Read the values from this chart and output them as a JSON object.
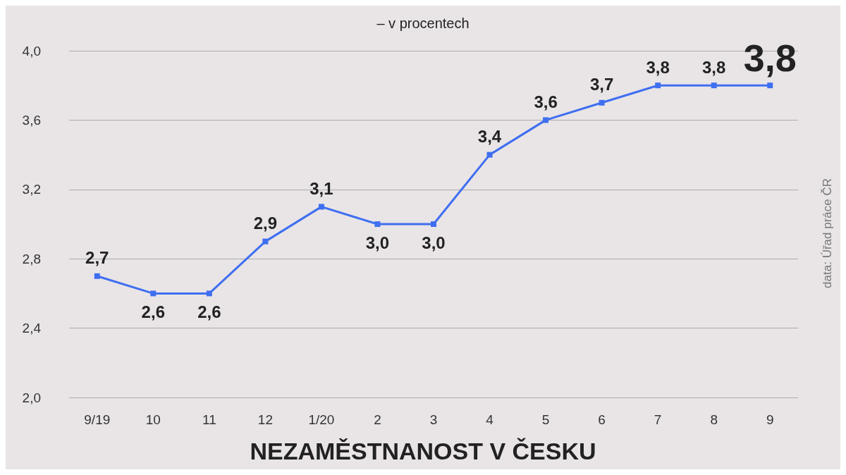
{
  "chart_data": {
    "type": "line",
    "title": "NEZAMĚSTNANOST V ČESKU",
    "subtitle": "– v procentech",
    "annotations": [
      "data: Úřad práce ČR"
    ],
    "categories": [
      "9/19",
      "10",
      "11",
      "12",
      "1/20",
      "2",
      "3",
      "4",
      "5",
      "6",
      "7",
      "8",
      "9"
    ],
    "series": [
      {
        "color": "#3f6ff0",
        "values": [
          2.7,
          2.6,
          2.6,
          2.9,
          3.1,
          3.0,
          3.0,
          3.4,
          3.6,
          3.7,
          3.8,
          3.8,
          3.8
        ],
        "value_labels": [
          "2,7",
          "2,6",
          "2,6",
          "2,9",
          "3,1",
          "3,0",
          "3,0",
          "3,4",
          "3,6",
          "3,7",
          "3,8",
          "3,8",
          "3,8"
        ]
      }
    ],
    "ylim": [
      2,
      4
    ],
    "yticks": [
      {
        "value": 2,
        "label": "2,0"
      },
      {
        "value": 2.4,
        "label": "2,4"
      },
      {
        "value": 2.8,
        "label": "2,8"
      },
      {
        "value": 3.2,
        "label": "3,2"
      },
      {
        "value": 3.6,
        "label": "3,6"
      },
      {
        "value": 4,
        "label": "4,0"
      }
    ],
    "grid": "y",
    "marker": "square",
    "line_style": "solid"
  }
}
